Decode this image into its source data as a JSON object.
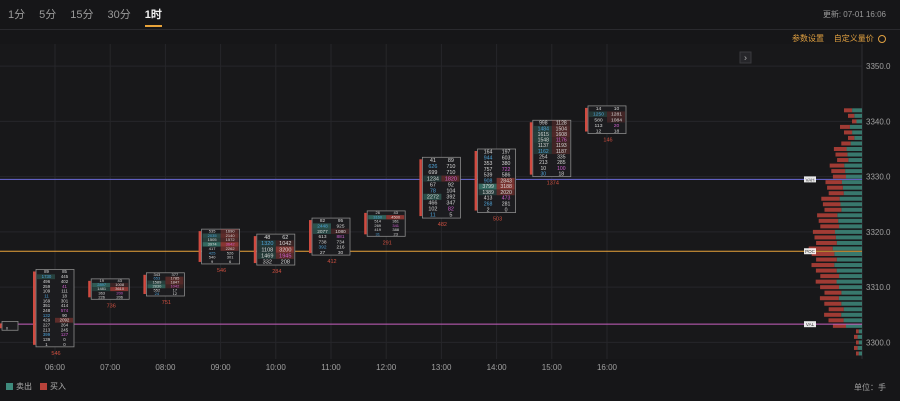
{
  "intervals": [
    {
      "label": "1分",
      "active": false
    },
    {
      "label": "5分",
      "active": false
    },
    {
      "label": "15分",
      "active": false
    },
    {
      "label": "30分",
      "active": false
    },
    {
      "label": "1时",
      "active": true
    }
  ],
  "update_text": "更新: 07-01 16:06",
  "toolbar": {
    "params_label": "参数设置",
    "custom_label": "自定义量价"
  },
  "colors": {
    "sell": "#3e8a7c",
    "buy": "#b8423a",
    "grid": "#26262a",
    "candle_border": "#8a8a8a",
    "poc_line": "#e8a33a",
    "vah_line": "#6a6ad8",
    "val_line": "#c860c0",
    "sell_text": "#4fa3d8",
    "buy_text": "#d060d0",
    "vol_text": "#d05040"
  },
  "y_axis": {
    "ticks": [
      "3350.0",
      "3340.0",
      "3330.0",
      "3320.0",
      "3310.0",
      "3300.0"
    ],
    "values": [
      3350,
      3340,
      3330,
      3320,
      3310,
      3300
    ],
    "min": 3297,
    "max": 3354
  },
  "x_axis": {
    "ticks": [
      "06:00",
      "07:00",
      "08:00",
      "09:00",
      "10:00",
      "11:00",
      "12:00",
      "13:00",
      "14:00",
      "15:00",
      "16:00"
    ]
  },
  "levels": {
    "vah": 3329.5,
    "poc": 3316.5,
    "val": 3303.3,
    "vah_label": "VAH",
    "poc_label": "POC",
    "val_label": "VAL"
  },
  "candles": [
    {
      "time": "05:00",
      "high": 3303.8,
      "low": 3302.2,
      "vol": "",
      "rows": [
        [
          "",
          ""
        ],
        [
          "0",
          ""
        ]
      ]
    },
    {
      "time": "06:00",
      "high": 3313.2,
      "low": 3299.2,
      "vol": "546",
      "rows": [
        [
          "89",
          "85"
        ],
        [
          "1730",
          "445"
        ],
        [
          "496",
          "402"
        ],
        [
          "259",
          "41"
        ],
        [
          "109",
          "111"
        ],
        [
          "11",
          "18"
        ],
        [
          "169",
          "301"
        ],
        [
          "351",
          "414"
        ],
        [
          "248",
          "574"
        ],
        [
          "132",
          "90"
        ],
        [
          "429",
          "2092"
        ],
        [
          "227",
          "264"
        ],
        [
          "213",
          "245"
        ],
        [
          "399",
          "127"
        ],
        [
          "139",
          "0"
        ],
        [
          "1",
          "0"
        ]
      ]
    },
    {
      "time": "07:00",
      "high": 3311.5,
      "low": 3307.8,
      "vol": "736",
      "rows": [
        [
          "19",
          "43"
        ],
        [
          "2897",
          "1008"
        ],
        [
          "1481",
          "3610"
        ],
        [
          "363",
          "200"
        ],
        [
          "226",
          "206"
        ]
      ]
    },
    {
      "time": "08:00",
      "high": 3312.6,
      "low": 3308.4,
      "vol": "751",
      "rows": [
        [
          "343",
          "377"
        ],
        [
          "653",
          "1785"
        ],
        [
          "1589",
          "1847"
        ],
        [
          "2830",
          "1042"
        ],
        [
          "552",
          "17"
        ],
        [
          "24",
          "12"
        ]
      ]
    },
    {
      "time": "09:00",
      "high": 3320.5,
      "low": 3314.2,
      "vol": "546",
      "rows": [
        [
          "535",
          "1690"
        ],
        [
          "2035",
          "2140"
        ],
        [
          "1505",
          "1572"
        ],
        [
          "3974",
          "3642"
        ],
        [
          "417",
          "2262"
        ],
        [
          "425",
          "526"
        ],
        [
          "540",
          "301"
        ],
        [
          "9",
          "6"
        ]
      ]
    },
    {
      "time": "10:00",
      "high": 3319.6,
      "low": 3314.0,
      "vol": "284",
      "rows": [
        [
          "48",
          "62"
        ],
        [
          "1320",
          "1042"
        ],
        [
          "1108",
          "3200"
        ],
        [
          "1469",
          "1945"
        ],
        [
          "332",
          "208"
        ]
      ]
    },
    {
      "time": "11:00",
      "high": 3322.5,
      "low": 3315.8,
      "vol": "412",
      "rows": [
        [
          "82",
          "95"
        ],
        [
          "2448",
          "925"
        ],
        [
          "2077",
          "1080"
        ],
        [
          "613",
          "881"
        ],
        [
          "738",
          "734"
        ],
        [
          "392",
          "216"
        ],
        [
          "27",
          "30"
        ]
      ]
    },
    {
      "time": "12:00",
      "high": 3323.8,
      "low": 3319.2,
      "vol": "291",
      "rows": [
        [
          "26",
          "43"
        ],
        [
          "3160",
          "4500"
        ],
        [
          "514",
          "361"
        ],
        [
          "269",
          "341"
        ],
        [
          "419",
          "388"
        ],
        [
          "31",
          "23"
        ]
      ]
    },
    {
      "time": "13:00",
      "high": 3333.5,
      "low": 3322.5,
      "vol": "482",
      "rows": [
        [
          "41",
          "89"
        ],
        [
          "626",
          "710"
        ],
        [
          "699",
          "710"
        ],
        [
          "1234",
          "1820"
        ],
        [
          "67",
          "92"
        ],
        [
          "78",
          "104"
        ],
        [
          "2272",
          "392"
        ],
        [
          "466",
          "347"
        ],
        [
          "102",
          "82"
        ],
        [
          "11",
          "5"
        ]
      ]
    },
    {
      "time": "14:00",
      "high": 3335.0,
      "low": 3323.5,
      "vol": "503",
      "rows": [
        [
          "164",
          "197"
        ],
        [
          "944",
          "603"
        ],
        [
          "353",
          "380"
        ],
        [
          "757",
          "722"
        ],
        [
          "539",
          "586"
        ],
        [
          "908",
          "2843"
        ],
        [
          "3799",
          "3188"
        ],
        [
          "1389",
          "2020"
        ],
        [
          "413",
          "473"
        ],
        [
          "268",
          "281"
        ],
        [
          "2",
          "0"
        ]
      ]
    },
    {
      "time": "15:00",
      "high": 3340.2,
      "low": 3330.0,
      "vol": "1374",
      "rows": [
        [
          "998",
          "1128"
        ],
        [
          "1484",
          "1504"
        ],
        [
          "1615",
          "1608"
        ],
        [
          "1548",
          "1176"
        ],
        [
          "1137",
          "1193"
        ],
        [
          "1162",
          "1187"
        ],
        [
          "254",
          "335"
        ],
        [
          "213",
          "285"
        ],
        [
          "10",
          "100"
        ],
        [
          "30",
          "18"
        ]
      ]
    },
    {
      "time": "16:00",
      "high": 3342.8,
      "low": 3337.8,
      "vol": "146",
      "rows": [
        [
          "14",
          "10"
        ],
        [
          "1250",
          "1281"
        ],
        [
          "580",
          "1084"
        ],
        [
          "113",
          "20"
        ],
        [
          "12",
          "18"
        ]
      ]
    }
  ]
}
